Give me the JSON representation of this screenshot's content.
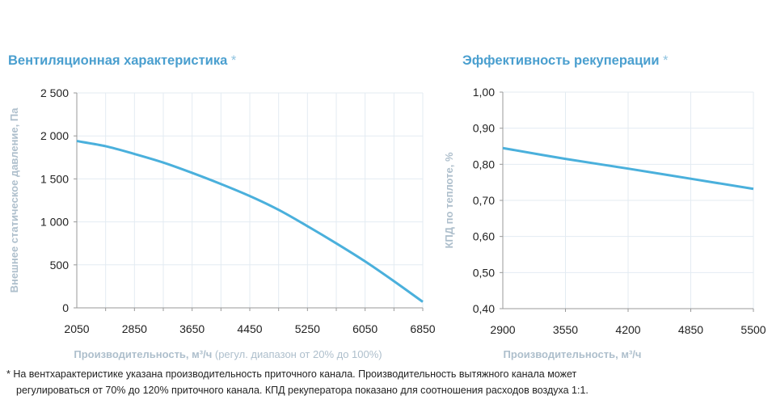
{
  "note_lines": [
    "* На вентхарактеристике указана производительность приточного канала. Производительность вытяжного канала может",
    "регулироваться от 70% до 120% приточного канала. КПД рекуператора показано для соотношения расходов воздуха 1:1."
  ],
  "colors": {
    "line": "#4ab0dc",
    "title": "#4a9fcf",
    "axis_label": "#aebfcc",
    "grid": "#e3ebf2"
  },
  "chart_data": [
    {
      "type": "line",
      "title": "Вентиляционная характеристика",
      "title_mark": "*",
      "xlabel_bold": "Производительность, м³/ч",
      "xlabel_rest": " (регул. диапазон от 20% до 100%)",
      "ylabel": "Внешнее статическое давление, Па",
      "xlim": [
        2050,
        6850
      ],
      "ylim": [
        0,
        2500
      ],
      "xticks": [
        2050,
        2850,
        3650,
        4450,
        5250,
        6050,
        6850
      ],
      "xtick_labels": [
        "2050",
        "2850",
        "3650",
        "4450",
        "5250",
        "6050",
        "6850"
      ],
      "xgrid_step": 400,
      "yticks": [
        0,
        500,
        1000,
        1500,
        2000,
        2500
      ],
      "ytick_labels": [
        "0",
        "500",
        "1 000",
        "1 500",
        "2 000",
        "2 500"
      ],
      "grid": true,
      "x": [
        2050,
        2450,
        2850,
        3250,
        3650,
        4050,
        4450,
        4850,
        5250,
        5650,
        6050,
        6450,
        6850
      ],
      "y": [
        1940,
        1880,
        1790,
        1690,
        1570,
        1440,
        1300,
        1140,
        950,
        750,
        540,
        310,
        70
      ]
    },
    {
      "type": "line",
      "title": "Эффективность рекуперации",
      "title_mark": "*",
      "xlabel_bold": "Производительность, м³/ч",
      "xlabel_rest": "",
      "ylabel": "КПД по теплоте, %",
      "xlim": [
        2900,
        5500
      ],
      "ylim": [
        0.4,
        1.0
      ],
      "xticks": [
        2900,
        3550,
        4200,
        4850,
        5500
      ],
      "xtick_labels": [
        "2900",
        "3550",
        "4200",
        "4850",
        "5500"
      ],
      "xgrid_step": 650,
      "yticks": [
        0.4,
        0.5,
        0.6,
        0.7,
        0.8,
        0.9,
        1.0
      ],
      "ytick_labels": [
        "0,40",
        "0,50",
        "0,60",
        "0,70",
        "0,80",
        "0,90",
        "1,00"
      ],
      "grid": true,
      "x": [
        2900,
        3550,
        4200,
        4850,
        5500
      ],
      "y": [
        0.845,
        0.815,
        0.788,
        0.76,
        0.732
      ]
    }
  ]
}
